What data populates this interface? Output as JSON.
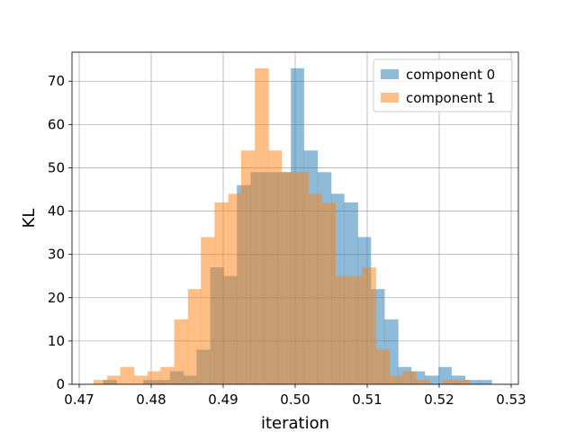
{
  "chart_data": {
    "type": "histogram",
    "title": "",
    "xlabel": "iteration",
    "ylabel": "KL",
    "xlim": [
      0.469,
      0.531
    ],
    "ylim": [
      0,
      76.7
    ],
    "grid": true,
    "legend_position": "top-right",
    "x_ticks": [
      "0.47",
      "0.48",
      "0.49",
      "0.50",
      "0.51",
      "0.52",
      "0.53"
    ],
    "y_ticks": [
      "0",
      "10",
      "20",
      "30",
      "40",
      "50",
      "60",
      "70"
    ],
    "series": [
      {
        "name": "component 0",
        "color": "#1f77b4",
        "opacity": 0.5,
        "bins": [
          [
            0.4733,
            0.4752,
            1
          ],
          [
            0.4752,
            0.477,
            0
          ],
          [
            0.477,
            0.4789,
            0
          ],
          [
            0.4789,
            0.4807,
            1
          ],
          [
            0.4807,
            0.4826,
            1
          ],
          [
            0.4826,
            0.4845,
            3
          ],
          [
            0.4845,
            0.4863,
            2
          ],
          [
            0.4863,
            0.4882,
            8
          ],
          [
            0.4882,
            0.4901,
            27
          ],
          [
            0.4901,
            0.4919,
            25
          ],
          [
            0.4919,
            0.4938,
            46
          ],
          [
            0.4938,
            0.4956,
            49
          ],
          [
            0.4956,
            0.4975,
            49
          ],
          [
            0.4975,
            0.4994,
            49
          ],
          [
            0.4994,
            0.5012,
            73
          ],
          [
            0.5012,
            0.5031,
            54
          ],
          [
            0.5031,
            0.505,
            49
          ],
          [
            0.505,
            0.5068,
            44
          ],
          [
            0.5068,
            0.5087,
            42
          ],
          [
            0.5087,
            0.5105,
            34
          ],
          [
            0.5105,
            0.5124,
            22
          ],
          [
            0.5124,
            0.5143,
            15
          ],
          [
            0.5143,
            0.5161,
            4
          ],
          [
            0.5161,
            0.518,
            3
          ],
          [
            0.518,
            0.5199,
            2
          ],
          [
            0.5199,
            0.5217,
            4
          ],
          [
            0.5217,
            0.5236,
            2
          ],
          [
            0.5236,
            0.5254,
            1
          ],
          [
            0.5254,
            0.5273,
            1
          ]
        ]
      },
      {
        "name": "component 1",
        "color": "#ff7f0e",
        "opacity": 0.5,
        "bins": [
          [
            0.472,
            0.4739,
            1
          ],
          [
            0.4739,
            0.4757,
            2
          ],
          [
            0.4757,
            0.4776,
            4
          ],
          [
            0.4776,
            0.4795,
            2
          ],
          [
            0.4795,
            0.4813,
            3
          ],
          [
            0.4813,
            0.4832,
            4
          ],
          [
            0.4832,
            0.4851,
            15
          ],
          [
            0.4851,
            0.4869,
            22
          ],
          [
            0.4869,
            0.4888,
            34
          ],
          [
            0.4888,
            0.4907,
            42
          ],
          [
            0.4907,
            0.4925,
            44
          ],
          [
            0.4925,
            0.4944,
            54
          ],
          [
            0.4944,
            0.4963,
            73
          ],
          [
            0.4963,
            0.4981,
            54
          ],
          [
            0.4981,
            0.5,
            49
          ],
          [
            0.5,
            0.5019,
            49
          ],
          [
            0.5019,
            0.5037,
            44
          ],
          [
            0.5037,
            0.5056,
            42
          ],
          [
            0.5056,
            0.5075,
            25
          ],
          [
            0.5075,
            0.5093,
            25
          ],
          [
            0.5093,
            0.5112,
            27
          ],
          [
            0.5112,
            0.5131,
            8
          ],
          [
            0.5131,
            0.5149,
            2
          ],
          [
            0.5149,
            0.5168,
            3
          ],
          [
            0.5168,
            0.5187,
            1
          ],
          [
            0.5187,
            0.5205,
            0
          ],
          [
            0.5205,
            0.5224,
            1
          ],
          [
            0.5224,
            0.5243,
            1
          ]
        ]
      }
    ]
  }
}
